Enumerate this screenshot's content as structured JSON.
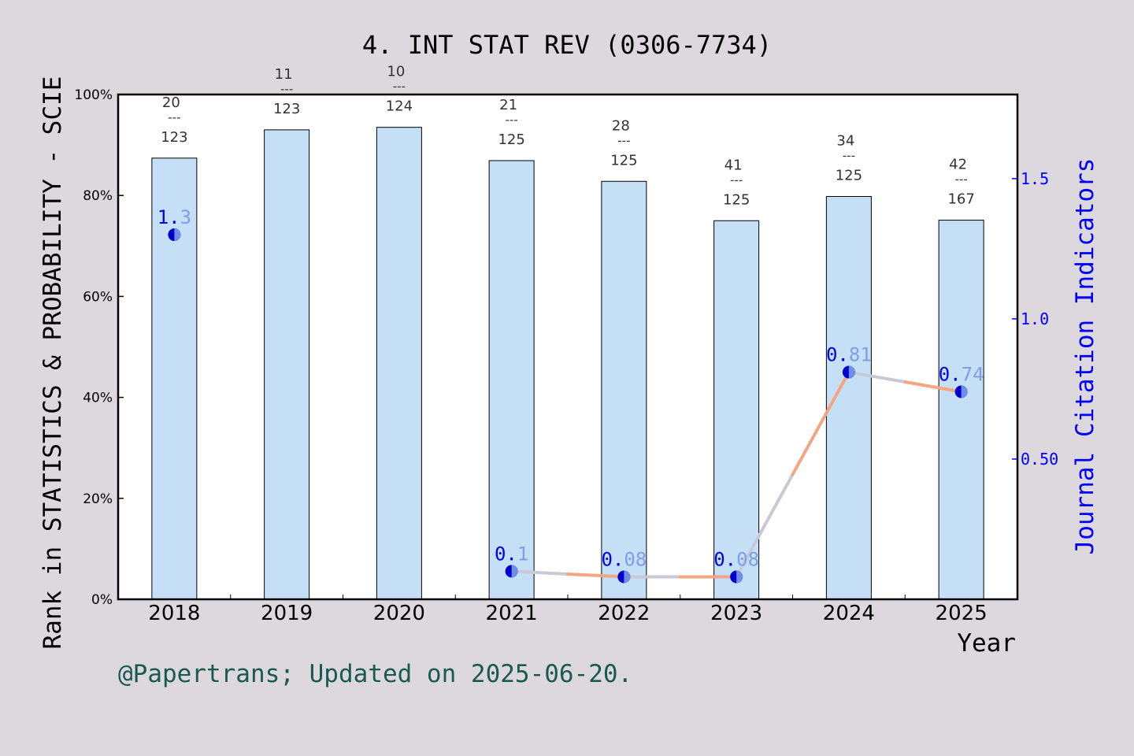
{
  "chart_data": {
    "type": "bar",
    "title": "4. INT STAT REV (0306-7734)",
    "xlabel": "Year",
    "ylabel": "Rank in STATISTICS & PROBABILITY - SCIE",
    "y2label": "Journal Citation Indicators",
    "footer": "@Papertrans; Updated on 2025-06-20.",
    "categories": [
      "2018",
      "2019",
      "2020",
      "2021",
      "2022",
      "2023",
      "2024",
      "2025"
    ],
    "ylim": [
      0,
      100
    ],
    "y_ticks": [
      "0%",
      "20%",
      "40%",
      "60%",
      "80%",
      "100%"
    ],
    "y2lim": [
      0,
      1.8
    ],
    "y2_ticks": [
      "0.50",
      "1.0",
      "1.5"
    ],
    "bars": {
      "values": [
        87.4,
        93.0,
        93.5,
        86.9,
        82.8,
        75.0,
        79.8,
        75.1
      ],
      "rank": [
        "20",
        "11",
        "10",
        "21",
        "28",
        "41",
        "34",
        "42"
      ],
      "total": [
        "123",
        "123",
        "124",
        "125",
        "125",
        "125",
        "125",
        "167"
      ],
      "separator": "---"
    },
    "line": {
      "x": [
        "2018",
        "2021",
        "2022",
        "2023",
        "2024",
        "2025"
      ],
      "values": [
        1.3,
        0.1,
        0.08,
        0.08,
        0.81,
        0.74
      ],
      "labels": [
        "1.3",
        "0.1",
        "0.08",
        "0.08",
        "0.81",
        "0.74"
      ],
      "segments": [
        [
          "2021",
          "2022"
        ],
        [
          "2022",
          "2023"
        ],
        [
          "2023",
          "2024"
        ],
        [
          "2024",
          "2025"
        ]
      ]
    },
    "grid": false,
    "colors": {
      "background": "#ddd8de",
      "plot_bg": "#ffffff",
      "bar": "#c5dff7",
      "line_a": "#f4a582",
      "line_b": "#c9c9d6",
      "marker": "#0000cc",
      "label_blue": "#0000ee",
      "label_light": "#7f9ee8",
      "right_axis": "#0000ff",
      "footer": "#1a5a4e"
    }
  }
}
